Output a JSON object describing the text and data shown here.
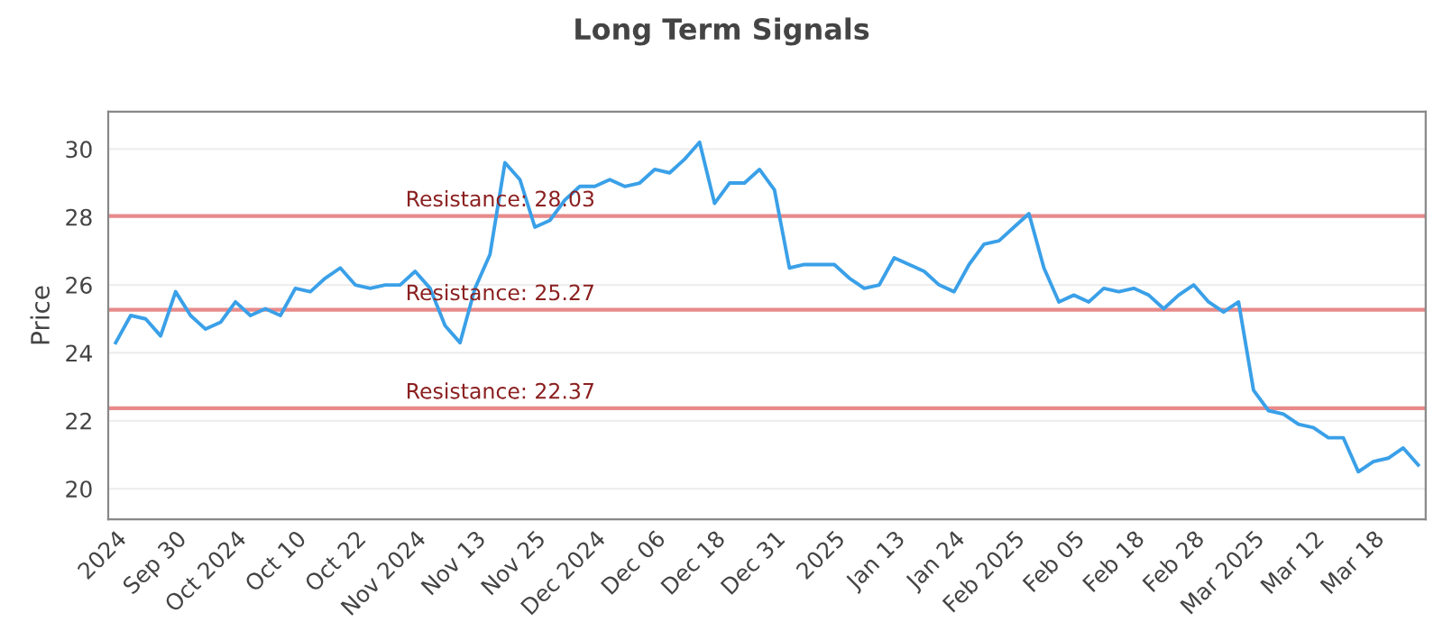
{
  "chart_data": {
    "type": "line",
    "title": "Long Term Signals",
    "ylabel": "Price",
    "categories": [
      "2024",
      null,
      null,
      null,
      "Sep 30",
      null,
      null,
      null,
      "Oct 2024",
      null,
      null,
      null,
      "Oct 10",
      null,
      null,
      null,
      "Oct 22",
      null,
      null,
      null,
      "Nov 2024",
      null,
      null,
      null,
      "Nov 13",
      null,
      null,
      null,
      "Nov 25",
      null,
      null,
      null,
      "Dec 2024",
      null,
      null,
      null,
      "Dec 06",
      null,
      null,
      null,
      "Dec 18",
      null,
      null,
      null,
      "Dec 31",
      null,
      null,
      null,
      "2025",
      null,
      null,
      null,
      "Jan 13",
      null,
      null,
      null,
      "Jan 24",
      null,
      null,
      null,
      "Feb 2025",
      null,
      null,
      null,
      "Feb 05",
      null,
      null,
      null,
      "Feb 18",
      null,
      null,
      null,
      "Feb 28",
      null,
      null,
      null,
      "Mar 2025",
      null,
      null,
      null,
      "Mar 12",
      null,
      null,
      null,
      "Mar 18",
      null,
      null,
      null
    ],
    "series": [
      {
        "color": "#3aa0e8",
        "values": [
          24.3,
          25.1,
          25.0,
          24.5,
          25.8,
          25.1,
          24.7,
          24.9,
          25.5,
          25.1,
          25.3,
          25.1,
          25.9,
          25.8,
          26.2,
          26.5,
          26.0,
          25.9,
          26.0,
          26.0,
          26.4,
          25.9,
          24.8,
          24.3,
          25.9,
          26.9,
          29.6,
          29.1,
          27.7,
          27.9,
          28.5,
          28.9,
          28.9,
          29.1,
          28.9,
          29.0,
          29.4,
          29.3,
          29.7,
          30.2,
          28.4,
          29.0,
          29.0,
          29.4,
          28.8,
          26.5,
          26.6,
          26.6,
          26.6,
          26.2,
          25.9,
          26.0,
          26.8,
          26.6,
          26.4,
          26.0,
          25.8,
          26.6,
          27.2,
          27.3,
          27.7,
          28.1,
          26.5,
          25.5,
          25.7,
          25.5,
          25.9,
          25.8,
          25.9,
          25.7,
          25.3,
          25.7,
          26.0,
          25.5,
          25.2,
          25.5,
          22.9,
          22.3,
          22.2,
          21.9,
          21.8,
          21.5,
          21.5,
          20.5,
          20.8,
          20.9,
          21.2,
          20.7
        ]
      }
    ],
    "ylim": [
      19.1,
      31.1
    ],
    "yticks": [
      20,
      22,
      24,
      26,
      28,
      30
    ],
    "grid": "y",
    "marker": "none",
    "line_style": "solid",
    "ref_lines": [
      {
        "axis": "y",
        "value": 28.03,
        "label": "Resistance: 28.03",
        "color": "#e88a8a"
      },
      {
        "axis": "y",
        "value": 25.27,
        "label": "Resistance: 25.27",
        "color": "#e88a8a"
      },
      {
        "axis": "y",
        "value": 22.37,
        "label": "Resistance: 22.37",
        "color": "#e88a8a"
      }
    ]
  }
}
